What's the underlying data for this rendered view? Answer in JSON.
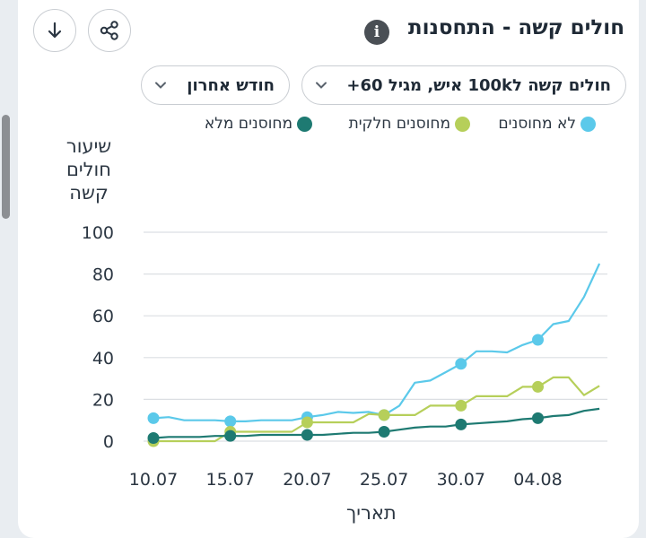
{
  "header": {
    "title": "חולים קשה - התחסנות",
    "info_icon": "info-icon",
    "download_icon": "download-arrow-icon",
    "share_icon": "share-icon"
  },
  "filters": {
    "metric": "חולים קשה ל100k איש, מגיל 60+",
    "period": "חודש אחרון"
  },
  "chart_data": {
    "type": "line",
    "xlabel": "תאריך",
    "ylabel": "שיעור חולים קשה",
    "ylim": [
      0,
      100
    ],
    "yticks": [
      0,
      20,
      40,
      60,
      80,
      100
    ],
    "grid": true,
    "legend_position": "top",
    "x": [
      "10.07",
      "11.07",
      "12.07",
      "13.07",
      "14.07",
      "15.07",
      "16.07",
      "17.07",
      "18.07",
      "19.07",
      "20.07",
      "21.07",
      "22.07",
      "23.07",
      "24.07",
      "25.07",
      "26.07",
      "27.07",
      "28.07",
      "29.07",
      "30.07",
      "31.07",
      "01.08",
      "02.08",
      "03.08",
      "04.08",
      "05.08",
      "06.08",
      "07.08",
      "08.08"
    ],
    "xticks": [
      "10.07",
      "15.07",
      "20.07",
      "25.07",
      "30.07",
      "04.08"
    ],
    "series": [
      {
        "name": "לא מחוסנים",
        "color": "#5bc9ea",
        "values": [
          11,
          11.5,
          10,
          10,
          10,
          9.5,
          9.5,
          10,
          10,
          10,
          11.5,
          12.5,
          14,
          13.5,
          14,
          12.5,
          17,
          28,
          29,
          33,
          37,
          43,
          43,
          42.5,
          46,
          48.5,
          56,
          57.5,
          69,
          85
        ]
      },
      {
        "name": "מחוסנים חלקית",
        "color": "#b6cf5a",
        "values": [
          0,
          0,
          0,
          0,
          0,
          4.5,
          4.5,
          4.5,
          4.5,
          4.5,
          9,
          9,
          9,
          9,
          13,
          12.5,
          12.5,
          12.5,
          17,
          17,
          17,
          21.5,
          21.5,
          21.5,
          26,
          26,
          30.5,
          30.5,
          22,
          26.5
        ]
      },
      {
        "name": "מחוסנים מלא",
        "color": "#1e7a72",
        "values": [
          1.5,
          2,
          2,
          2,
          2.5,
          2.5,
          2.5,
          3,
          3,
          3,
          3,
          3,
          3.5,
          4,
          4,
          4.5,
          5.5,
          6.5,
          7,
          7,
          8,
          8.5,
          9,
          9.5,
          10.5,
          11,
          12,
          12.5,
          14.5,
          15.5
        ]
      }
    ],
    "markers_at": [
      0,
      5,
      10,
      15,
      20,
      25
    ]
  }
}
